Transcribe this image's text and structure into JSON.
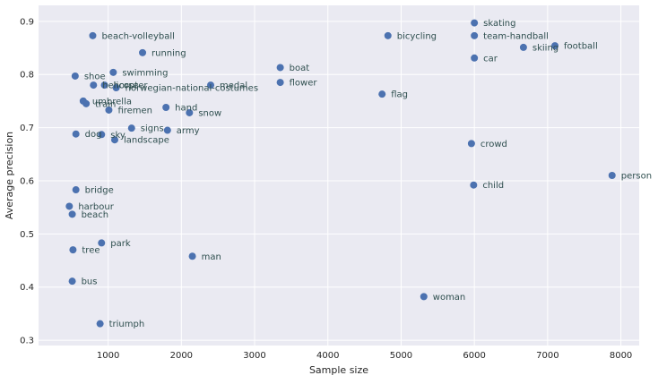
{
  "chart_data": {
    "type": "scatter",
    "title": "",
    "xlabel": "Sample size",
    "ylabel": "Average precision",
    "xlim": [
      50,
      8250
    ],
    "ylim": [
      0.29,
      0.93
    ],
    "xticks": [
      1000,
      2000,
      3000,
      4000,
      5000,
      6000,
      7000,
      8000
    ],
    "yticks": [
      0.3,
      0.4,
      0.5,
      0.6,
      0.7,
      0.8,
      0.9
    ],
    "grid": true,
    "background": "#eaeaf2",
    "point_color": "#4c72b0",
    "label_color": "#2f4f4f",
    "points": [
      {
        "label": "skating",
        "x": 6000,
        "y": 0.897
      },
      {
        "label": "team-handball",
        "x": 6000,
        "y": 0.873
      },
      {
        "label": "bicycling",
        "x": 4820,
        "y": 0.873
      },
      {
        "label": "beach-volleyball",
        "x": 790,
        "y": 0.873
      },
      {
        "label": "football",
        "x": 7100,
        "y": 0.854
      },
      {
        "label": "skiing",
        "x": 6670,
        "y": 0.851
      },
      {
        "label": "running",
        "x": 1470,
        "y": 0.841
      },
      {
        "label": "car",
        "x": 6000,
        "y": 0.831
      },
      {
        "label": "boat",
        "x": 3350,
        "y": 0.813
      },
      {
        "label": "swimming",
        "x": 1070,
        "y": 0.804
      },
      {
        "label": "shoe",
        "x": 550,
        "y": 0.797
      },
      {
        "label": "flower",
        "x": 3350,
        "y": 0.785
      },
      {
        "label": "helicopter",
        "x": 800,
        "y": 0.78
      },
      {
        "label": "medal",
        "x": 2400,
        "y": 0.78
      },
      {
        "label": "horse",
        "x": 950,
        "y": 0.78
      },
      {
        "label": "norwegian-national-costumes",
        "x": 1110,
        "y": 0.775
      },
      {
        "label": "flag",
        "x": 4740,
        "y": 0.763
      },
      {
        "label": "umbrella",
        "x": 660,
        "y": 0.75
      },
      {
        "label": "train",
        "x": 700,
        "y": 0.745
      },
      {
        "label": "hand",
        "x": 1790,
        "y": 0.738
      },
      {
        "label": "firemen",
        "x": 1010,
        "y": 0.733
      },
      {
        "label": "snow",
        "x": 2110,
        "y": 0.728
      },
      {
        "label": "signs",
        "x": 1320,
        "y": 0.699
      },
      {
        "label": "army",
        "x": 1810,
        "y": 0.695
      },
      {
        "label": "dog",
        "x": 560,
        "y": 0.688
      },
      {
        "label": "sky",
        "x": 910,
        "y": 0.687
      },
      {
        "label": "landscape",
        "x": 1090,
        "y": 0.677
      },
      {
        "label": "crowd",
        "x": 5960,
        "y": 0.67
      },
      {
        "label": "person",
        "x": 7880,
        "y": 0.61
      },
      {
        "label": "child",
        "x": 5990,
        "y": 0.592
      },
      {
        "label": "bridge",
        "x": 560,
        "y": 0.583
      },
      {
        "label": "harbour",
        "x": 470,
        "y": 0.552
      },
      {
        "label": "beach",
        "x": 510,
        "y": 0.537
      },
      {
        "label": "park",
        "x": 910,
        "y": 0.483
      },
      {
        "label": "tree",
        "x": 520,
        "y": 0.47
      },
      {
        "label": "man",
        "x": 2150,
        "y": 0.458
      },
      {
        "label": "bus",
        "x": 510,
        "y": 0.411
      },
      {
        "label": "woman",
        "x": 5310,
        "y": 0.382
      },
      {
        "label": "triumph",
        "x": 890,
        "y": 0.331
      }
    ]
  }
}
